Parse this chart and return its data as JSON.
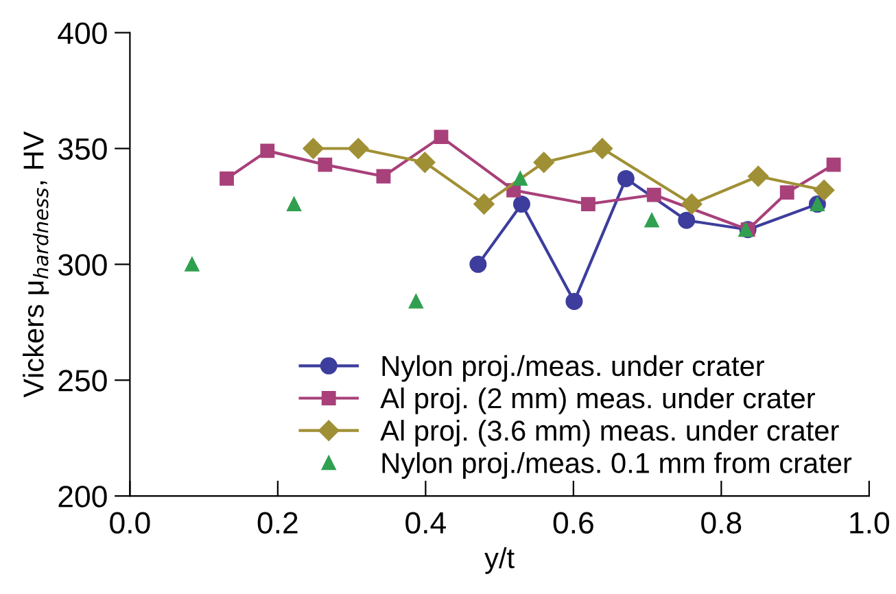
{
  "chart_data": {
    "type": "line",
    "xlabel": "y/t",
    "ylabel": "Vickers μ$_{hardness}$, HV",
    "xlim": [
      0,
      1.0
    ],
    "xticks": [
      {
        "value": 0,
        "label": "0.0"
      },
      0.2,
      0.4,
      0.6,
      0.8,
      {
        "value": 1.0,
        "label": "1.0"
      }
    ],
    "ylim": [
      200,
      400
    ],
    "yticks": [
      200,
      250,
      300,
      350,
      400
    ],
    "grid": false,
    "legend": "bottom right",
    "series": [
      {
        "name": "Nylon proj./meas. under crater",
        "color": "#3d3d9e",
        "marker": "circle",
        "x": [
          0.471,
          0.53,
          0.601,
          0.671,
          0.753,
          0.836,
          0.93
        ],
        "values": [
          300,
          326,
          284,
          337,
          319,
          315,
          326
        ]
      },
      {
        "name": "Al proj. (2 mm) meas. under crater",
        "color": "#a8407a",
        "marker": "square",
        "x": [
          0.131,
          0.186,
          0.264,
          0.343,
          0.421,
          0.519,
          0.62,
          0.709,
          0.836,
          0.889,
          0.952
        ],
        "values": [
          337,
          349,
          343,
          338,
          355,
          332,
          326,
          330,
          315,
          331,
          343
        ]
      },
      {
        "name": "Al proj. (3.6 mm) meas. under crater",
        "color": "#a09035",
        "marker": "diamond",
        "x": [
          0.248,
          0.309,
          0.399,
          0.479,
          0.56,
          0.639,
          0.76,
          0.85,
          0.939
        ],
        "values": [
          350,
          350,
          344,
          326,
          344,
          350,
          326,
          338,
          332
        ]
      },
      {
        "name": "Nylon proj./meas. 0.1 mm from crater",
        "type": "scatter",
        "color": "#30a050",
        "marker": "triangle",
        "x": [
          0.084,
          0.222,
          0.387,
          0.528,
          0.706,
          0.833,
          0.93
        ],
        "values": [
          300,
          326,
          284,
          337,
          319,
          315,
          326
        ]
      }
    ]
  }
}
